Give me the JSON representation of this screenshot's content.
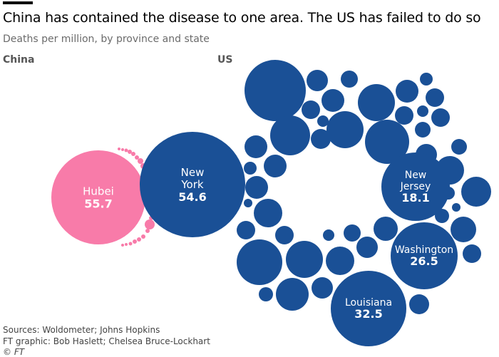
{
  "header": {
    "title": "China has contained the disease to one area. The US has failed to do so",
    "subtitle": "Deaths per million, by province and state"
  },
  "panels": {
    "china": "China",
    "us": "US"
  },
  "colors": {
    "china": "#f87ba9",
    "us": "#1a5096",
    "label": "#ffffff"
  },
  "chart_data": {
    "type": "bubble",
    "title": "China has contained the disease to one area. The US has failed to do so",
    "subtitle": "Deaths per million, by province and state",
    "groups": [
      {
        "name": "China",
        "labeled": [
          {
            "name": "Hubei",
            "value": 55.7
          }
        ]
      },
      {
        "name": "US",
        "labeled": [
          {
            "name": "New York",
            "value": 54.6
          },
          {
            "name": "New Jersey",
            "value": 18.1
          },
          {
            "name": "Washington",
            "value": 26.5
          },
          {
            "name": "Louisiana",
            "value": 32.5
          }
        ]
      }
    ]
  },
  "footer": {
    "sources": "Sources: Woldometer; Johns Hopkins",
    "graphic": "FT graphic: Bob Haslett; Chelsea Bruce-Lockhart",
    "copyright": "© FT"
  }
}
